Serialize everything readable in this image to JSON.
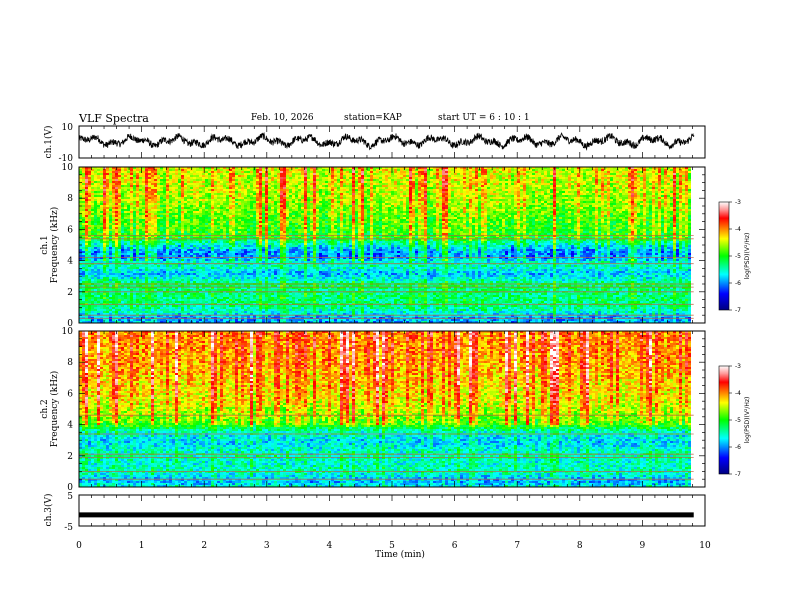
{
  "header": {
    "title": "VLF Spectra",
    "date": "Feb. 10, 2026",
    "station": "station=KAP",
    "start": "start UT =  6 : 10 : 1"
  },
  "chart_data": {
    "type": "heatmap",
    "title": "VLF Spectra",
    "xlabel": "Time (min)",
    "xlim": [
      0,
      10
    ],
    "x_ticks": [
      "0",
      "1",
      "2",
      "3",
      "4",
      "5",
      "6",
      "7",
      "8",
      "9",
      "10"
    ],
    "data_end_min": 9.82,
    "panels": [
      {
        "name": "ch1-waveform",
        "type": "line",
        "ylabel": "ch.1(V)",
        "ylim": [
          -10,
          10
        ],
        "y_ticks": [
          "10",
          "-10"
        ],
        "series": [
          {
            "name": "ch.1 voltage",
            "mean": 0.6,
            "amplitude": 4.5
          }
        ]
      },
      {
        "name": "ch1-spectrogram",
        "type": "heatmap",
        "ylabel_line1": "ch.1",
        "ylabel_line2": "Frequency (kHz)",
        "ylim": [
          0,
          10
        ],
        "y_ticks": [
          "0",
          "2",
          "4",
          "6",
          "8",
          "10"
        ],
        "colorbar": {
          "label": "log(PSD)(V²/Hz)",
          "range": [
            -7,
            -3
          ],
          "ticks": [
            "-3",
            "-4",
            "-5",
            "-6",
            "-7"
          ]
        },
        "frequency_profile_kHz_logPSD": [
          [
            0,
            -5.9
          ],
          [
            0.3,
            -6.0
          ],
          [
            0.6,
            -5.7
          ],
          [
            1.0,
            -5.4
          ],
          [
            1.5,
            -5.3
          ],
          [
            2.0,
            -5.35
          ],
          [
            2.5,
            -5.25
          ],
          [
            2.8,
            -5.6
          ],
          [
            3.2,
            -5.9
          ],
          [
            3.6,
            -5.5
          ],
          [
            3.9,
            -5.6
          ],
          [
            4.2,
            -6.0
          ],
          [
            4.6,
            -6.0
          ],
          [
            5.0,
            -5.6
          ],
          [
            5.5,
            -5.0
          ],
          [
            6.0,
            -4.95
          ],
          [
            7.0,
            -4.8
          ],
          [
            8.0,
            -4.6
          ],
          [
            9.0,
            -4.5
          ],
          [
            10.0,
            -4.45
          ]
        ],
        "horizontal_lines_kHz": [
          0.3,
          0.5,
          1.2,
          2.0,
          2.3,
          2.5,
          3.8,
          4.2,
          5.4,
          5.6
        ]
      },
      {
        "name": "ch2-spectrogram",
        "type": "heatmap",
        "ylabel_line1": "ch.2",
        "ylabel_line2": "Frequency (kHz)",
        "ylim": [
          0,
          10
        ],
        "y_ticks": [
          "0",
          "2",
          "4",
          "6",
          "8",
          "10"
        ],
        "colorbar": {
          "label": "log(PSD)(V²/Hz)",
          "range": [
            -7,
            -3
          ],
          "ticks": [
            "-3",
            "-4",
            "-5",
            "-6",
            "-7"
          ]
        },
        "frequency_profile_kHz_logPSD": [
          [
            0,
            -5.6
          ],
          [
            0.3,
            -5.9
          ],
          [
            0.6,
            -5.8
          ],
          [
            1.0,
            -5.5
          ],
          [
            1.6,
            -5.6
          ],
          [
            2.0,
            -5.5
          ],
          [
            2.4,
            -5.6
          ],
          [
            2.8,
            -5.8
          ],
          [
            3.2,
            -5.7
          ],
          [
            3.6,
            -5.5
          ],
          [
            4.0,
            -4.9
          ],
          [
            4.5,
            -4.7
          ],
          [
            5.5,
            -4.4
          ],
          [
            6.5,
            -4.3
          ],
          [
            8.0,
            -4.1
          ],
          [
            10.0,
            -4.0
          ]
        ],
        "horizontal_lines_kHz": [
          0.5,
          1.0,
          1.9,
          2.1,
          3.4,
          4.6
        ]
      },
      {
        "name": "ch3-waveform",
        "type": "line",
        "ylabel": "ch.3(V)",
        "ylim": [
          -5,
          5
        ],
        "y_ticks": [
          "5",
          "-5"
        ],
        "series": [
          {
            "name": "ch.3 voltage",
            "mean": 0.0,
            "amplitude": 0.5
          }
        ]
      }
    ]
  }
}
